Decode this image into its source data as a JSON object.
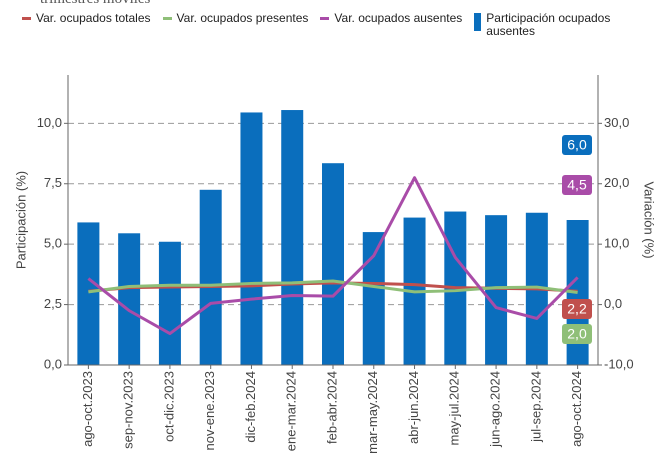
{
  "chart_data": {
    "type": "bar",
    "title": "trimestres móviles",
    "y_label": "Participación (%)",
    "y2_label": "Variación (%)",
    "categories": [
      "ago-oct.2023",
      "sep-nov.2023",
      "oct-dic.2023",
      "nov-ene.2023",
      "dic-feb.2024",
      "ene-mar.2024",
      "feb-abr.2024",
      "mar-may.2024",
      "abr-jun.2024",
      "may-jul.2024",
      "jun-ago.2024",
      "jul-sep.2024",
      "ago-oct.2024"
    ],
    "series": [
      {
        "name": "Var. ocupados totales",
        "type": "line",
        "axis": "y2",
        "color": "#c0504d",
        "values": [
          2.2,
          2.8,
          2.9,
          3.0,
          3.1,
          3.4,
          3.6,
          3.5,
          3.3,
          2.8,
          2.7,
          2.6,
          2.2
        ],
        "value_labels": [
          null,
          null,
          null,
          null,
          null,
          null,
          null,
          null,
          null,
          null,
          null,
          null,
          "2,2"
        ]
      },
      {
        "name": "Var. ocupados presentes",
        "type": "line",
        "axis": "y2",
        "color": "#8fbf78",
        "values": [
          2.1,
          3.0,
          3.2,
          3.2,
          3.5,
          3.6,
          3.9,
          3.0,
          2.1,
          2.3,
          2.8,
          2.9,
          2.0
        ],
        "value_labels": [
          null,
          null,
          null,
          null,
          null,
          null,
          null,
          null,
          null,
          null,
          null,
          null,
          "2,0"
        ]
      },
      {
        "name": "Var. ocupados ausentes",
        "type": "line",
        "axis": "y2",
        "color": "#a94ca8",
        "values": [
          4.3,
          -1.0,
          -4.8,
          0.2,
          0.9,
          1.5,
          1.4,
          8.1,
          21.0,
          7.8,
          -0.5,
          -2.3,
          4.5
        ],
        "value_labels": [
          null,
          null,
          null,
          null,
          null,
          null,
          null,
          null,
          null,
          null,
          null,
          null,
          "4,5"
        ]
      },
      {
        "name": "Participación ocupados ausentes",
        "type": "bar",
        "axis": "y",
        "color": "#0a6ebd",
        "values": [
          5.9,
          5.45,
          5.1,
          7.25,
          10.45,
          10.55,
          8.35,
          5.5,
          6.1,
          6.35,
          6.2,
          6.3,
          6.0
        ],
        "value_labels": [
          null,
          null,
          null,
          null,
          null,
          null,
          null,
          null,
          null,
          null,
          null,
          null,
          "6,0"
        ]
      }
    ],
    "ylim": [
      0,
      12
    ],
    "yticks": [
      {
        "value": 0,
        "label": "0,0"
      },
      {
        "value": 2.5,
        "label": "2,5"
      },
      {
        "value": 5,
        "label": "5,0"
      },
      {
        "value": 7.5,
        "label": "7,5"
      },
      {
        "value": 10,
        "label": "10,0"
      }
    ],
    "y2lim": [
      -10,
      38
    ],
    "y2ticks": [
      {
        "value": -10,
        "label": "-10,0"
      },
      {
        "value": 0,
        "label": "0,0"
      },
      {
        "value": 10,
        "label": "10,0"
      },
      {
        "value": 20,
        "label": "20,0"
      },
      {
        "value": 30,
        "label": "30,0"
      }
    ],
    "grid": true
  }
}
